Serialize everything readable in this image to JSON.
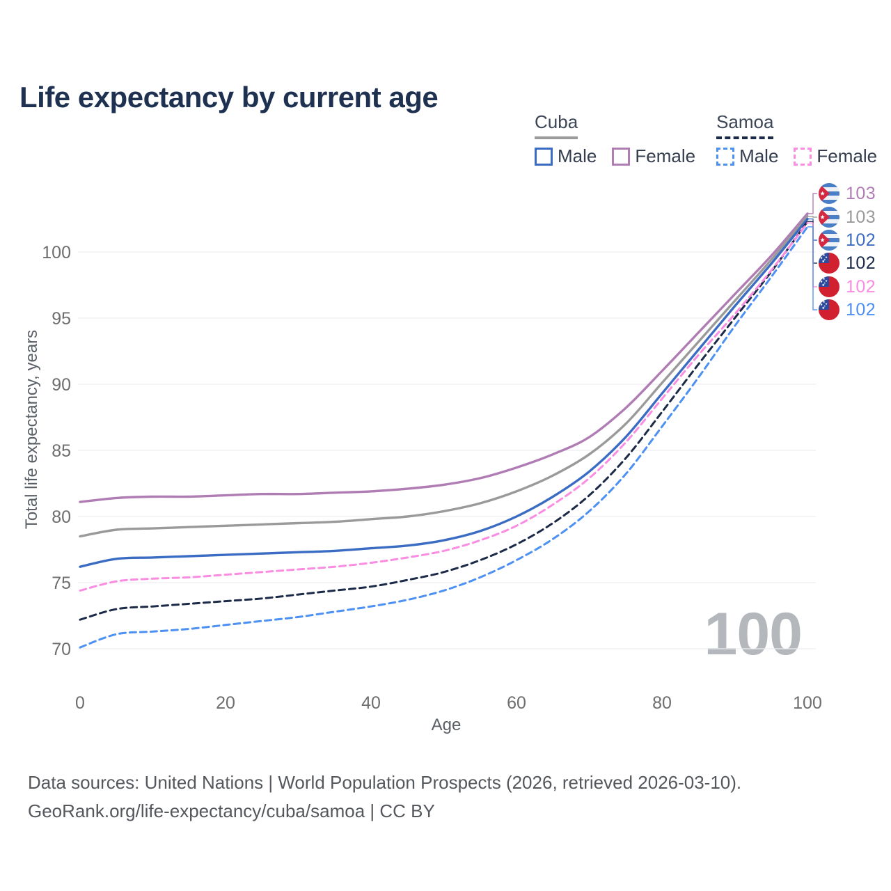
{
  "title": "Life expectancy by current age",
  "watermark": "100",
  "legend": {
    "groups": [
      {
        "name": "Cuba",
        "underline_style": "solid",
        "underline_color": "#9a9a9a",
        "items": [
          {
            "label": "Male",
            "color": "#3b6cc4",
            "dashed": false
          },
          {
            "label": "Female",
            "color": "#b07cb4",
            "dashed": false
          }
        ]
      },
      {
        "name": "Samoa",
        "underline_style": "dashed",
        "underline_color": "#1b2a47",
        "items": [
          {
            "label": "Male",
            "color": "#4d90f3",
            "dashed": true
          },
          {
            "label": "Female",
            "color": "#fa8ce2",
            "dashed": true
          }
        ]
      }
    ]
  },
  "chart_data": {
    "type": "line",
    "title": "Life expectancy by current age",
    "xlabel": "Age",
    "ylabel": "Total life expectancy, years",
    "xlim": [
      0,
      100
    ],
    "ylim": [
      68.5,
      103.5
    ],
    "x_ticks": [
      0,
      20,
      40,
      60,
      80,
      100
    ],
    "y_ticks": [
      70,
      75,
      80,
      85,
      90,
      95,
      100
    ],
    "grid": "horizontal",
    "legend_position": "top-right",
    "x": [
      0,
      5,
      10,
      15,
      20,
      25,
      30,
      35,
      40,
      45,
      50,
      55,
      60,
      65,
      70,
      75,
      80,
      85,
      90,
      95,
      100
    ],
    "series": [
      {
        "id": "cuba-female",
        "name": "Cuba Female",
        "country": "Cuba",
        "category": "Female",
        "color": "#b07cb4",
        "line_style": "solid",
        "end_label": "103",
        "values": [
          81.1,
          81.4,
          81.5,
          81.5,
          81.6,
          81.7,
          81.7,
          81.8,
          81.9,
          82.1,
          82.4,
          82.9,
          83.7,
          84.7,
          86.0,
          88.2,
          91.0,
          93.9,
          96.8,
          99.7,
          102.9
        ]
      },
      {
        "id": "cuba",
        "name": "Cuba (both sexes)",
        "country": "Cuba",
        "category": "All",
        "color": "#9a9a9a",
        "line_style": "solid",
        "end_label": "103",
        "values": [
          78.5,
          79.0,
          79.1,
          79.2,
          79.3,
          79.4,
          79.5,
          79.6,
          79.8,
          80.0,
          80.4,
          81.0,
          81.9,
          83.1,
          84.7,
          87.0,
          90.1,
          93.2,
          96.3,
          99.4,
          102.7
        ]
      },
      {
        "id": "cuba-male",
        "name": "Cuba Male",
        "country": "Cuba",
        "category": "Male",
        "color": "#3b6cc4",
        "line_style": "solid",
        "end_label": "102",
        "values": [
          76.2,
          76.8,
          76.9,
          77.0,
          77.1,
          77.2,
          77.3,
          77.4,
          77.6,
          77.8,
          78.2,
          78.9,
          80.0,
          81.5,
          83.4,
          86.0,
          89.3,
          92.6,
          95.9,
          99.1,
          102.5
        ]
      },
      {
        "id": "samoa",
        "name": "Samoa (both sexes)",
        "country": "Samoa",
        "category": "All",
        "color": "#1b2a47",
        "line_style": "dashed",
        "end_label": "102",
        "values": [
          72.2,
          73.0,
          73.2,
          73.4,
          73.6,
          73.8,
          74.1,
          74.4,
          74.7,
          75.2,
          75.8,
          76.7,
          77.9,
          79.5,
          81.6,
          84.4,
          87.9,
          91.5,
          95.0,
          98.5,
          102.3
        ]
      },
      {
        "id": "samoa-female",
        "name": "Samoa Female",
        "country": "Samoa",
        "category": "Female",
        "color": "#fa8ce2",
        "line_style": "dashed",
        "end_label": "102",
        "values": [
          74.4,
          75.1,
          75.3,
          75.4,
          75.6,
          75.8,
          76.0,
          76.2,
          76.5,
          76.9,
          77.4,
          78.2,
          79.3,
          80.9,
          82.9,
          85.6,
          88.9,
          92.2,
          95.3,
          98.6,
          102.2
        ]
      },
      {
        "id": "samoa-male",
        "name": "Samoa Male",
        "country": "Samoa",
        "category": "Male",
        "color": "#4d90f3",
        "line_style": "dashed",
        "end_label": "102",
        "values": [
          70.1,
          71.1,
          71.3,
          71.5,
          71.8,
          72.1,
          72.4,
          72.8,
          73.2,
          73.7,
          74.4,
          75.4,
          76.7,
          78.3,
          80.4,
          83.2,
          86.8,
          90.5,
          94.4,
          98.1,
          101.9
        ]
      }
    ]
  },
  "footer": {
    "line1": "Data sources: United Nations | World Population Prospects (2026, retrieved 2026-03-10).",
    "line2": "GeoRank.org/life-expectancy/cuba/samoa | CC BY"
  }
}
